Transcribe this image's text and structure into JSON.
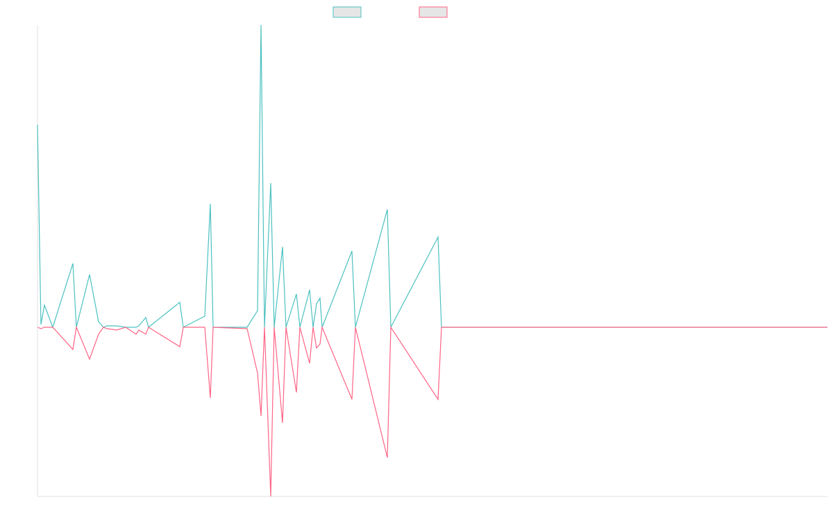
{
  "chart_data": {
    "type": "line",
    "x": [
      0,
      5,
      10,
      22,
      51,
      56,
      75,
      88,
      95,
      100,
      114,
      127,
      142,
      146,
      156,
      160,
      205,
      210,
      241,
      249,
      253,
      302,
      317,
      322,
      327,
      336,
      341,
      353,
      358,
      373,
      378,
      392,
      397,
      402,
      407,
      410,
      453,
      458,
      504,
      509,
      577,
      582,
      818,
      1138
    ],
    "series": [
      {
        "color": "#4bc0c0",
        "values": [
          292,
          4,
          32,
          0,
          92,
          0,
          76,
          8,
          0,
          2,
          2,
          0,
          0,
          2,
          14,
          0,
          36,
          0,
          16,
          178,
          0,
          0,
          24,
          436,
          0,
          208,
          0,
          116,
          0,
          48,
          0,
          54,
          0,
          34,
          42,
          0,
          110,
          0,
          170,
          0,
          130,
          0,
          0,
          0
        ]
      },
      {
        "color": "#ff6384",
        "values": [
          0,
          -2,
          0,
          0,
          -32,
          0,
          -46,
          -10,
          0,
          -2,
          -4,
          0,
          -10,
          -4,
          -10,
          0,
          -28,
          0,
          0,
          -102,
          0,
          -2,
          -66,
          -128,
          0,
          -244,
          0,
          -138,
          0,
          -94,
          0,
          -52,
          0,
          -30,
          -24,
          0,
          -104,
          0,
          -188,
          0,
          -104,
          0,
          0,
          0
        ]
      }
    ],
    "xlim": [
      0,
      1138
    ],
    "ylim": [
      -244,
      436
    ]
  }
}
